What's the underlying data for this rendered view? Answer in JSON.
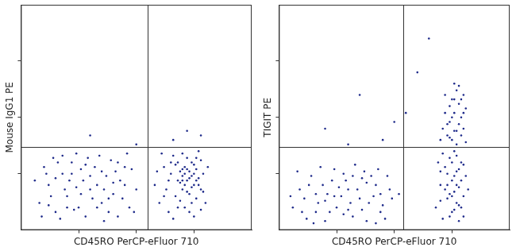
{
  "chart_data": [
    {
      "type": "scatter",
      "x_label": "CD45RO PerCP-eFluor 710",
      "y_label": "Mouse IgG1 PE",
      "color": "#1e2a8a",
      "xlim": [
        0,
        100
      ],
      "ylim": [
        0,
        100
      ],
      "xticks": [
        25,
        50,
        75
      ],
      "yticks": [
        25,
        50,
        75
      ],
      "tick_labels": false,
      "grid": false,
      "quadrant_gates": {
        "x": 55,
        "y": 37
      },
      "x": [
        8,
        12,
        15,
        18,
        20,
        22,
        25,
        27,
        30,
        32,
        35,
        37,
        40,
        42,
        45,
        47,
        10,
        14,
        17,
        21,
        24,
        28,
        31,
        34,
        38,
        41,
        44,
        48,
        50,
        6,
        9,
        13,
        16,
        19,
        23,
        26,
        29,
        33,
        36,
        39,
        43,
        46,
        49,
        11,
        26,
        30,
        35,
        40,
        20,
        15,
        45,
        33,
        24,
        18,
        38,
        28,
        42,
        12,
        22,
        36,
        58,
        60,
        62,
        63,
        64,
        65,
        66,
        67,
        68,
        68,
        69,
        70,
        70,
        71,
        71,
        72,
        72,
        73,
        73,
        74,
        74,
        75,
        75,
        76,
        76,
        77,
        78,
        78,
        79,
        80,
        61,
        64,
        66,
        67,
        69,
        70,
        71,
        72,
        73,
        74,
        75,
        76,
        77,
        79,
        81,
        59,
        62,
        65,
        68,
        70,
        72,
        74,
        76,
        78,
        69,
        71,
        73,
        75,
        77,
        70,
        30,
        66,
        72,
        50,
        78
      ],
      "values": [
        12,
        20,
        8,
        25,
        15,
        30,
        10,
        22,
        18,
        28,
        12,
        24,
        16,
        30,
        20,
        10,
        28,
        32,
        5,
        22,
        34,
        6,
        14,
        33,
        8,
        26,
        14,
        27,
        18,
        22,
        6,
        15,
        30,
        18,
        9,
        27,
        32,
        20,
        4,
        31,
        22,
        34,
        8,
        25,
        16,
        24,
        26,
        21,
        10,
        23,
        28,
        10,
        19,
        33,
        14,
        29,
        6,
        11,
        25,
        18,
        20,
        12,
        28,
        18,
        8,
        25,
        33,
        15,
        22,
        30,
        26,
        24,
        18,
        28,
        10,
        22,
        32,
        26,
        16,
        24,
        30,
        20,
        6,
        27,
        14,
        23,
        31,
        18,
        25,
        12,
        34,
        22,
        5,
        29,
        13,
        34,
        20,
        27,
        8,
        19,
        29,
        22,
        35,
        17,
        28,
        26,
        15,
        30,
        10,
        27,
        17,
        12,
        32,
        9,
        21,
        25,
        23,
        25,
        20,
        22,
        42,
        40,
        44,
        38,
        42
      ]
    },
    {
      "type": "scatter",
      "x_label": "CD45RO PerCP-eFluor 710",
      "y_label": "TIGIT PE",
      "color": "#1e2a8a",
      "xlim": [
        0,
        100
      ],
      "ylim": [
        0,
        100
      ],
      "xticks": [
        25,
        50,
        75
      ],
      "yticks": [
        25,
        50,
        75
      ],
      "tick_labels": false,
      "grid": false,
      "quadrant_gates": {
        "x": 54,
        "y": 37
      },
      "x": [
        6,
        9,
        12,
        14,
        17,
        19,
        22,
        24,
        27,
        29,
        32,
        34,
        37,
        39,
        42,
        44,
        47,
        49,
        8,
        11,
        15,
        18,
        21,
        25,
        28,
        31,
        33,
        36,
        38,
        41,
        43,
        46,
        48,
        10,
        13,
        16,
        20,
        23,
        26,
        30,
        35,
        40,
        45,
        20,
        28,
        36,
        42,
        24,
        32,
        16,
        52,
        5,
        38,
        30,
        44,
        68,
        70,
        71,
        72,
        73,
        74,
        75,
        75,
        76,
        76,
        77,
        77,
        78,
        78,
        79,
        80,
        81,
        69,
        70,
        72,
        73,
        74,
        75,
        76,
        77,
        78,
        79,
        80,
        82,
        71,
        74,
        76,
        78,
        80,
        73,
        75,
        77,
        79,
        70,
        70,
        71,
        72,
        73,
        74,
        75,
        75,
        76,
        76,
        77,
        77,
        78,
        78,
        79,
        79,
        80,
        80,
        81,
        81,
        72,
        74,
        76,
        78,
        73,
        75,
        77,
        79,
        80,
        74,
        76,
        20,
        35,
        45,
        55,
        60,
        65,
        30,
        50
      ],
      "values": [
        10,
        18,
        5,
        24,
        12,
        20,
        8,
        27,
        15,
        22,
        6,
        18,
        26,
        12,
        20,
        8,
        24,
        14,
        26,
        14,
        3,
        28,
        16,
        10,
        25,
        12,
        29,
        9,
        21,
        15,
        27,
        5,
        18,
        8,
        20,
        16,
        4,
        22,
        19,
        9,
        14,
        24,
        11,
        13,
        7,
        23,
        3,
        15,
        24,
        8,
        16,
        15,
        4,
        18,
        16,
        10,
        20,
        5,
        28,
        14,
        32,
        8,
        22,
        17,
        35,
        12,
        26,
        4,
        19,
        30,
        15,
        24,
        30,
        13,
        18,
        25,
        6,
        30,
        24,
        33,
        11,
        22,
        29,
        18,
        34,
        16,
        9,
        27,
        6,
        20,
        15,
        20,
        10,
        26,
        40,
        45,
        52,
        42,
        48,
        58,
        40,
        44,
        52,
        62,
        38,
        47,
        56,
        42,
        50,
        60,
        45,
        39,
        54,
        60,
        55,
        65,
        64,
        47,
        50,
        44,
        58,
        52,
        41,
        58,
        45,
        60,
        40,
        52,
        70,
        85,
        38,
        48
      ]
    }
  ]
}
